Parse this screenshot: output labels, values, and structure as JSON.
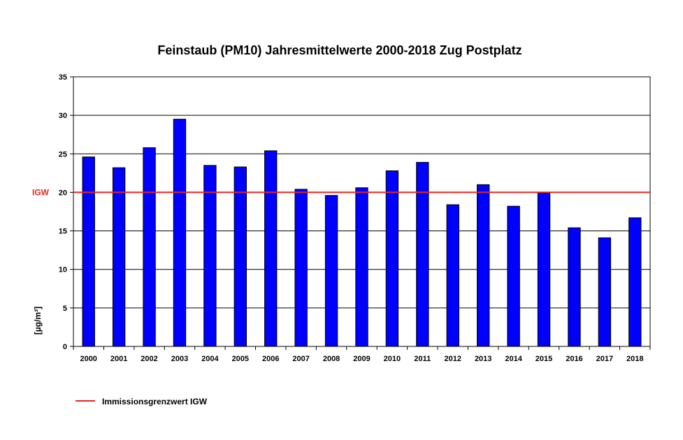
{
  "chart_data": {
    "type": "bar",
    "title": "Feinstaub (PM10) Jahresmittelwerte  2000-2018 Zug Postplatz",
    "ylabel": "[µg/m³]",
    "xlabel": "",
    "ylim": [
      0,
      35
    ],
    "yticks": [
      0,
      5,
      10,
      15,
      20,
      25,
      30,
      35
    ],
    "grid": true,
    "categories": [
      "2000",
      "2001",
      "2002",
      "2003",
      "2004",
      "2005",
      "2006",
      "2007",
      "2008",
      "2009",
      "2010",
      "2011",
      "2012",
      "2013",
      "2014",
      "2015",
      "2016",
      "2017",
      "2018"
    ],
    "values": [
      24.6,
      23.2,
      25.8,
      29.5,
      23.5,
      23.3,
      25.4,
      20.4,
      19.6,
      20.6,
      22.8,
      23.9,
      18.4,
      21.0,
      18.2,
      19.9,
      15.4,
      14.1,
      16.7
    ],
    "bar_color": "#0000ff",
    "reference_line": {
      "value": 20,
      "label": "IGW",
      "color": "#e8261e"
    },
    "legend": {
      "position": "bottom-left",
      "entries": [
        {
          "label": "Immissionsgrenzwert IGW",
          "color": "#e8261e"
        }
      ]
    }
  }
}
